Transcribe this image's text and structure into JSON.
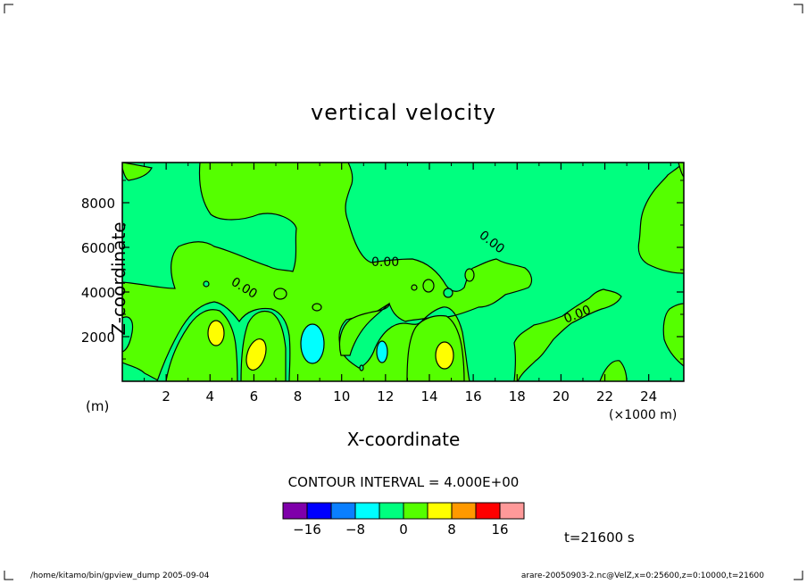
{
  "chart_data": {
    "type": "contour",
    "title": "vertical velocity",
    "xlabel": "X-coordinate",
    "ylabel": "Z-coordinate",
    "x_unit_label": "(×1000 m)",
    "y_unit_label": "(m)",
    "xlim": [
      0,
      25.6
    ],
    "ylim": [
      0,
      9800
    ],
    "x_ticks": [
      2,
      4,
      6,
      8,
      10,
      12,
      14,
      16,
      18,
      20,
      22,
      24
    ],
    "y_ticks": [
      2000,
      4000,
      6000,
      8000
    ],
    "contour_interval_text": "CONTOUR INTERVAL = 4.000E+00",
    "contour_labels": [
      "0.00",
      "0.00",
      "0.00",
      "0.00"
    ],
    "colorbar": {
      "bounds": [
        -20,
        -16,
        -12,
        -8,
        -4,
        0,
        4,
        8,
        12,
        16,
        20
      ],
      "tick_values": [
        -16,
        -8,
        0,
        8,
        16
      ],
      "tick_labels": [
        "−16",
        "−8",
        "0",
        "8",
        "16"
      ],
      "colors": [
        "#7f00aa",
        "#0000ff",
        "#0a7fff",
        "#00ffff",
        "#00ff7f",
        "#55ff00",
        "#ffff00",
        "#ff9900",
        "#ff0000",
        "#ff9999"
      ]
    },
    "time_label": "t=21600 s",
    "grid": false
  },
  "footer": {
    "left": "/home/kitamo/bin/gpview_dump  2005-09-04",
    "right": "arare-20050903-2.nc@VelZ,x=0:25600,z=0:10000,t=21600"
  }
}
